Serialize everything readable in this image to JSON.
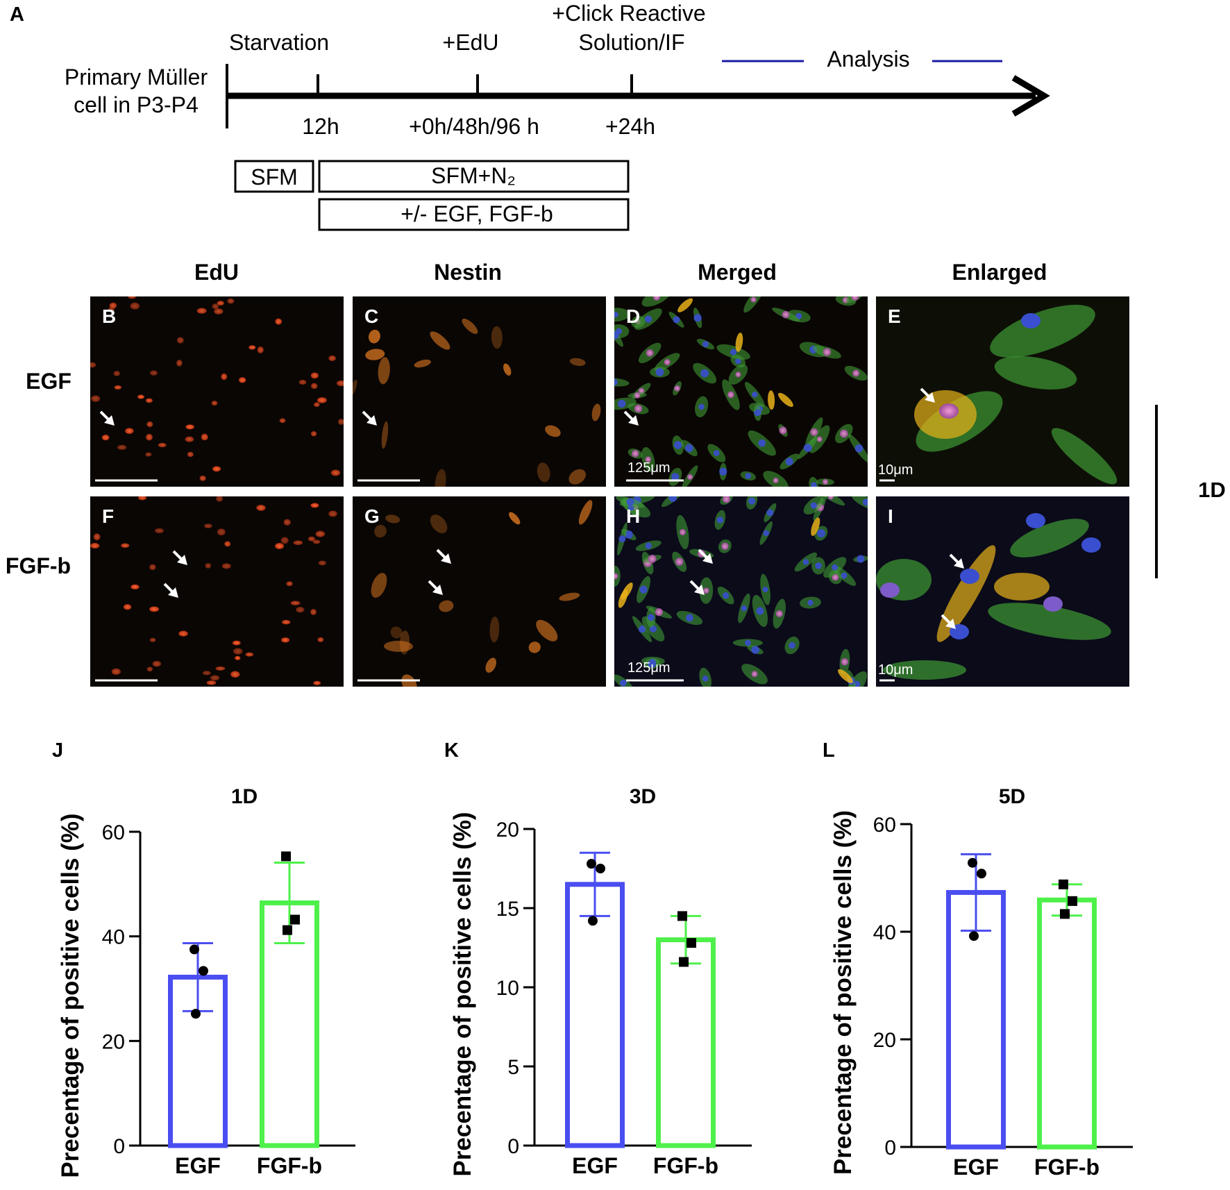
{
  "figure": {
    "panel_a": {
      "letter": "A",
      "start_label_line1": "Primary Müller",
      "start_label_line2": "cell in P3-P4",
      "events": [
        {
          "label_line1": "Starvation",
          "label_line2": "",
          "time": ""
        },
        {
          "label_line1": "",
          "label_line2": "",
          "time": "12h"
        },
        {
          "label_line1": "+EdU",
          "label_line2": "",
          "time": "+0h/48h/96 h"
        },
        {
          "label_line1": "+Click Reactive",
          "label_line2": "Solution/IF",
          "time": "+24h"
        }
      ],
      "analysis_label": "Analysis",
      "analysis_line_color": "#1a1aa6",
      "boxes": {
        "sfm": "SFM",
        "sfm_n2": "SFM+N₂",
        "factors": "+/- EGF, FGF-b"
      }
    },
    "micrographs": {
      "columns": [
        "EdU",
        "Nestin",
        "Merged",
        "Enlarged"
      ],
      "rows": [
        "EGF",
        "FGF-b"
      ],
      "panel_letters": [
        [
          "B",
          "C",
          "D",
          "E"
        ],
        [
          "F",
          "G",
          "H",
          "I"
        ]
      ],
      "scale_labels": {
        "merged": "125μm",
        "enlarged": "10μm"
      },
      "side_label": "1D",
      "colors": {
        "edu": "#e2461c",
        "nestin": "#e07a22",
        "actin": "#3f9a35",
        "dapi": "#3a4fcf",
        "merged_nucleus": "#d86fb7",
        "coloc": "#e8b21a"
      }
    },
    "charts": {
      "ylabel": "Precentage of positive cells (%)",
      "egf_color": "#4a4ef0",
      "fgf_color": "#4ef04a"
    }
  },
  "chart_data": [
    {
      "panel": "J",
      "type": "bar",
      "title": "1D",
      "categories": [
        "EGF",
        "FGF-b"
      ],
      "values": [
        32.2,
        46.4
      ],
      "error": [
        6.5,
        7.7
      ],
      "points": [
        [
          37.5,
          33.4,
          25.2
        ],
        [
          55.3,
          43.2,
          41.2
        ]
      ],
      "ylim": [
        0,
        60
      ],
      "yticks": [
        0,
        20,
        40,
        60
      ],
      "tick_labels": [
        "0",
        "20",
        "40",
        "60"
      ],
      "ylabel": "Precentage of positive cells (%)",
      "xlabel": ""
    },
    {
      "panel": "K",
      "type": "bar",
      "title": "3D",
      "categories": [
        "EGF",
        "FGF-b"
      ],
      "values": [
        16.5,
        13.0
      ],
      "error": [
        2.0,
        1.5
      ],
      "points": [
        [
          17.8,
          17.5,
          14.2
        ],
        [
          14.5,
          12.8,
          11.6
        ]
      ],
      "ylim": [
        0,
        20
      ],
      "yticks": [
        0,
        5,
        10,
        15,
        20
      ],
      "tick_labels": [
        "0",
        "5",
        "10",
        "15",
        "20"
      ],
      "ylabel": "Precentage of positive cells (%)",
      "xlabel": ""
    },
    {
      "panel": "L",
      "type": "bar",
      "title": "5D",
      "categories": [
        "EGF",
        "FGF-b"
      ],
      "values": [
        47.3,
        45.9
      ],
      "error": [
        7.1,
        2.9
      ],
      "points": [
        [
          52.8,
          50.8,
          39.2
        ],
        [
          48.8,
          45.7,
          43.3
        ]
      ],
      "ylim": [
        0,
        60
      ],
      "yticks": [
        0,
        20,
        40,
        60
      ],
      "tick_labels": [
        "0",
        "20",
        "40",
        "60"
      ],
      "ylabel": "Precentage of positive cells (%)",
      "xlabel": ""
    }
  ]
}
